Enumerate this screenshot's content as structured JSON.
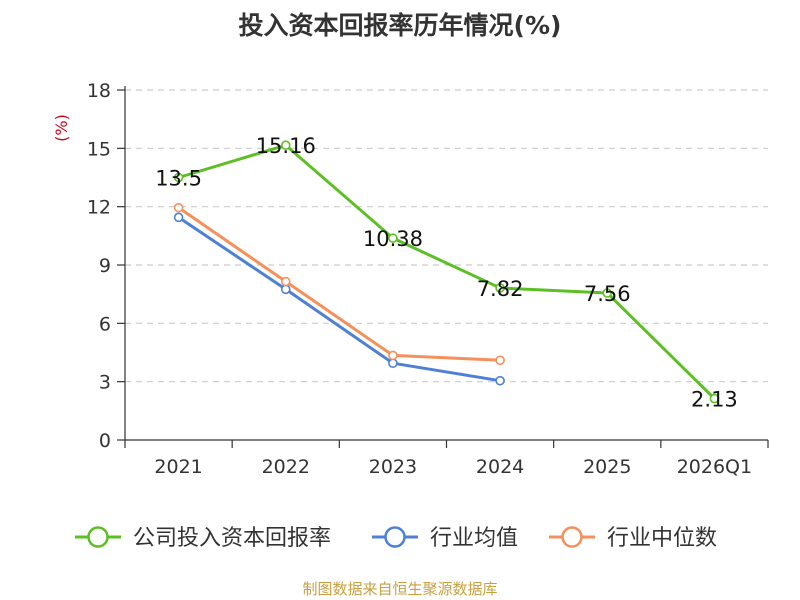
{
  "chart_data": {
    "type": "line",
    "title": "投入资本回报率历年情况(%)",
    "ylabel": "(%)",
    "xlabel": "",
    "ylim": [
      0,
      18
    ],
    "yticks": [
      0,
      3,
      6,
      9,
      12,
      15,
      18
    ],
    "categories": [
      "2021",
      "2022",
      "2023",
      "2024",
      "2025",
      "2026Q1"
    ],
    "grid": true,
    "legend_position": "bottom",
    "series": [
      {
        "name": "公司投入资本回报率",
        "color": "#5cc024",
        "values": [
          13.5,
          15.16,
          10.38,
          7.82,
          7.56,
          2.13
        ],
        "labels": [
          "13.5",
          "15.16",
          "10.38",
          "7.82",
          "7.56",
          "2.13"
        ]
      },
      {
        "name": "行业均值",
        "color": "#4e80d6",
        "values": [
          11.45,
          7.75,
          3.95,
          3.05,
          null,
          null
        ]
      },
      {
        "name": "行业中位数",
        "color": "#f5905c",
        "values": [
          11.95,
          8.15,
          4.35,
          4.1,
          null,
          null
        ]
      }
    ],
    "source": "制图数据来自恒生聚源数据库"
  }
}
